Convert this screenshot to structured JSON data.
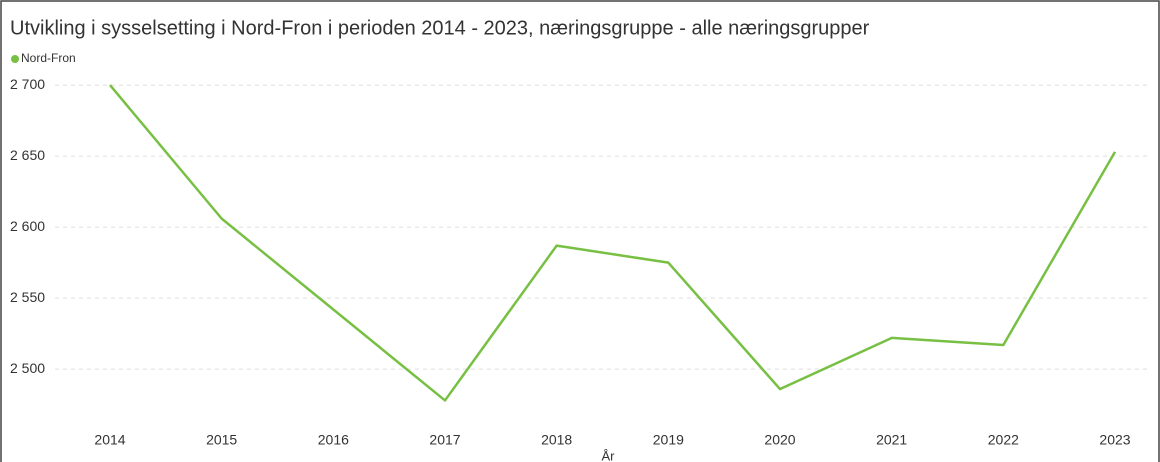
{
  "chart_data": {
    "type": "line",
    "title": "Utvikling i sysselsetting i Nord-Fron i perioden 2014 - 2023, næringsgruppe - alle næringsgrupper",
    "x_label": "År",
    "categories": [
      "2014",
      "2015",
      "2016",
      "2017",
      "2018",
      "2019",
      "2020",
      "2021",
      "2022",
      "2023"
    ],
    "series": [
      {
        "name": "Nord-Fron",
        "color": "#77c043",
        "values": [
          2700,
          2606,
          2542,
          2478,
          2587,
          2575,
          2486,
          2522,
          2517,
          2653
        ]
      }
    ],
    "ylim": [
      2460,
      2705
    ],
    "yticks": [
      {
        "value": 2500,
        "label": "2 500"
      },
      {
        "value": 2550,
        "label": "2 550"
      },
      {
        "value": 2600,
        "label": "2 600"
      },
      {
        "value": 2650,
        "label": "2 650"
      },
      {
        "value": 2700,
        "label": "2 700"
      }
    ],
    "grid": true,
    "legend": "top-left"
  }
}
